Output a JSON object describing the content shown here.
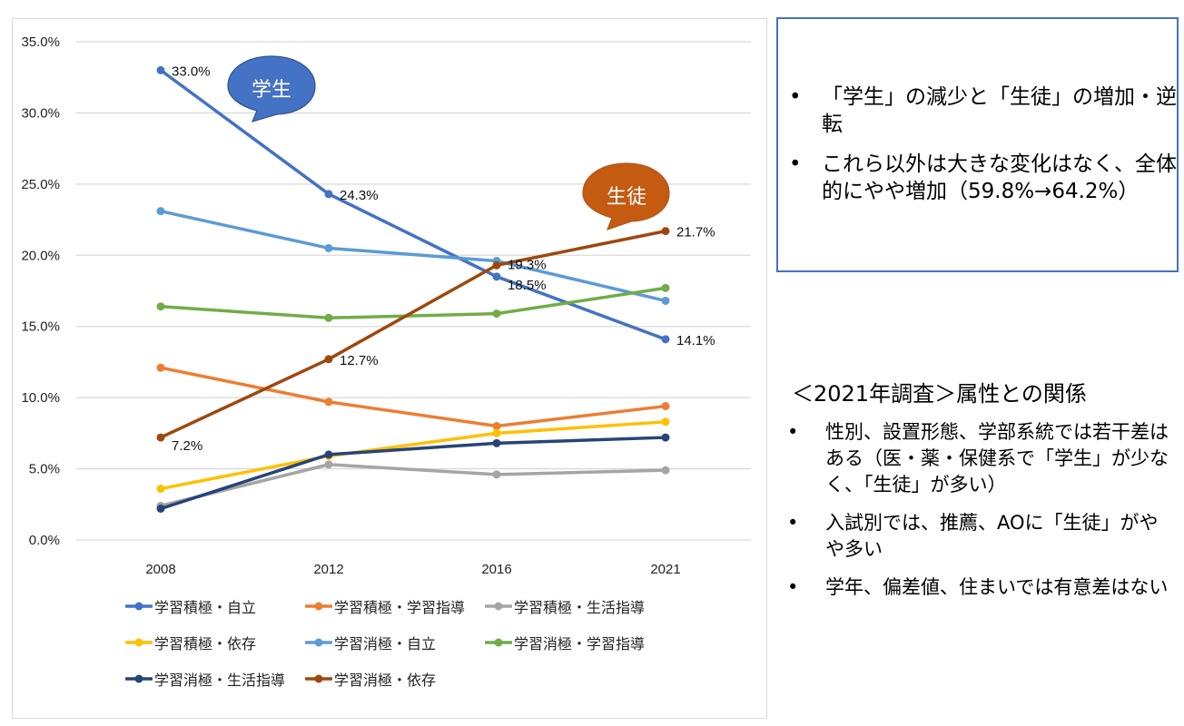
{
  "chart_data": {
    "type": "line",
    "title": "",
    "xlabel": "",
    "ylabel": "",
    "categories": [
      "2008",
      "2012",
      "2016",
      "2021"
    ],
    "ylim": [
      0,
      35
    ],
    "y_ticks": [
      "0.0%",
      "5.0%",
      "10.0%",
      "15.0%",
      "20.0%",
      "25.0%",
      "30.0%",
      "35.0%"
    ],
    "y_tick_values": [
      0,
      5,
      10,
      15,
      20,
      25,
      30,
      35
    ],
    "grid": true,
    "legend_position": "bottom",
    "series": [
      {
        "name": "学習積極・自立",
        "color": "#4472c4",
        "values": [
          33.0,
          24.3,
          18.5,
          14.1
        ],
        "labels": [
          "33.0%",
          "24.3%",
          "18.5%",
          "14.1%"
        ]
      },
      {
        "name": "学習積極・学習指導",
        "color": "#ed7d31",
        "values": [
          12.1,
          9.7,
          8.0,
          9.4
        ],
        "labels": null
      },
      {
        "name": "学習積極・生活指導",
        "color": "#a5a5a5",
        "values": [
          2.4,
          5.3,
          4.6,
          4.9
        ],
        "labels": null
      },
      {
        "name": "学習積極・依存",
        "color": "#ffc000",
        "values": [
          3.6,
          5.9,
          7.5,
          8.3
        ],
        "labels": null
      },
      {
        "name": "学習消極・自立",
        "color": "#5b9bd5",
        "values": [
          23.1,
          20.5,
          19.6,
          16.8
        ],
        "labels": null
      },
      {
        "name": "学習消極・学習指導",
        "color": "#70ad47",
        "values": [
          16.4,
          15.6,
          15.9,
          17.7
        ],
        "labels": null
      },
      {
        "name": "学習消極・生活指導",
        "color": "#264478",
        "values": [
          2.2,
          6.0,
          6.8,
          7.2
        ],
        "labels": null
      },
      {
        "name": "学習消極・依存",
        "color": "#9e480e",
        "values": [
          7.2,
          12.7,
          19.3,
          21.7
        ],
        "labels": [
          "7.2%",
          "12.7%",
          "19.3%",
          "21.7%"
        ]
      }
    ],
    "annotations": [
      {
        "text": "学生",
        "color": "#4472c4",
        "points_to": "学習積極・自立"
      },
      {
        "text": "生徒",
        "color": "#c55a11",
        "points_to": "学習消極・依存"
      }
    ]
  },
  "summary": {
    "items": [
      "「学生」の減少と「生徒」の増加・逆転",
      "これら以外は大きな変化はなく、全体的にやや増加（59.8%→64.2%）"
    ]
  },
  "attributes": {
    "title": "＜2021年調査＞属性との関係",
    "items": [
      "性別、設置形態、学部系統では若干差はある（医・薬・保健系で「学生」が少なく、「生徒」が多い）",
      "入試別では、推薦、AOに「生徒」がやや多い",
      "学年、偏差値、住まいでは有意差はない"
    ]
  },
  "bullet_char": "•"
}
